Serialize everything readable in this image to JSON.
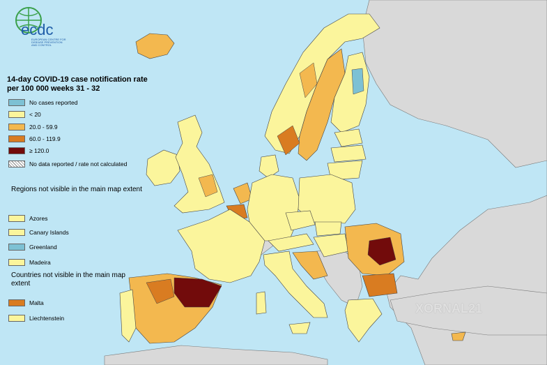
{
  "logo": {
    "brand": "ecdc",
    "subtitle": "EUROPEAN CENTRE FOR DISEASE PREVENTION AND CONTROL"
  },
  "legend": {
    "title": "14-day COVID-19 case notification rate per 100 000 weeks 31 - 32",
    "categories": [
      {
        "label": "No cases reported",
        "color": "#7dc1d4"
      },
      {
        "label": "< 20",
        "color": "#fbf59c"
      },
      {
        "label": "20.0 - 59.9",
        "color": "#f3b84f"
      },
      {
        "label": "60.0 - 119.9",
        "color": "#d97c21"
      },
      {
        "label": "≥ 120.0",
        "color": "#720b0b"
      },
      {
        "label": "No data reported / rate not calculated",
        "color": "hatched"
      }
    ],
    "regions_title": "Regions not visible in the main map extent",
    "regions": [
      {
        "label": "Azores",
        "color": "#fbf59c"
      },
      {
        "label": "Canary Islands",
        "color": "#fbf59c"
      },
      {
        "label": "Greenland",
        "color": "#7dc1d4"
      },
      {
        "label": "Madeira",
        "color": "#fbf59c"
      }
    ],
    "countries_title": "Countries not visible in the main map extent",
    "countries": [
      {
        "label": "Malta",
        "color": "#d97c21"
      },
      {
        "label": "Liechtenstein",
        "color": "#fbf59c"
      }
    ]
  },
  "watermark": "XORNAL21",
  "colors": {
    "sea": "#bfe6f5",
    "non_eu_land": "#d9d9d9",
    "border": "#444444"
  }
}
